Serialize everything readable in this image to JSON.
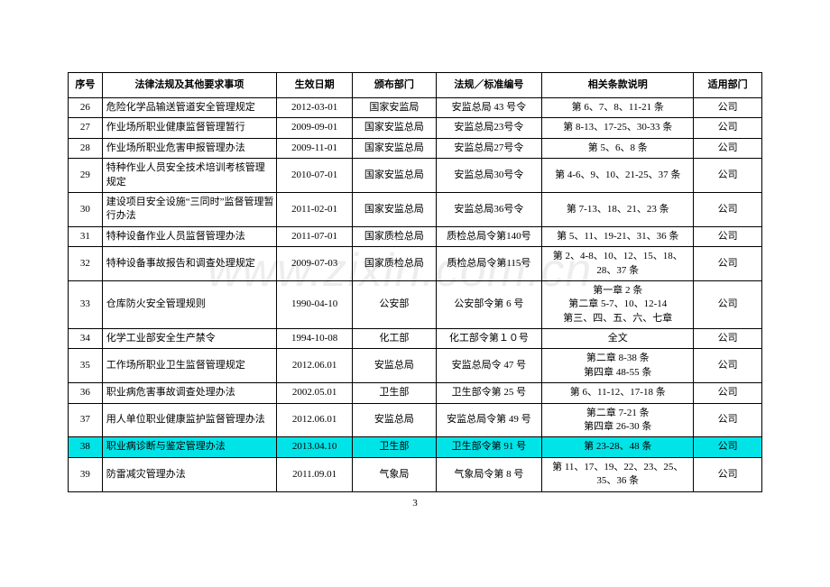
{
  "pageNumber": "3",
  "watermark": "www.zixin.com.cn",
  "columns": [
    "序号",
    "法律法规及其他要求事项",
    "生效日期",
    "颁布部门",
    "法规／标准编号",
    "相关条款说明",
    "适用部门"
  ],
  "rows": [
    {
      "seq": "26",
      "name": "危险化学品输送管道安全管理规定",
      "date": "2012-03-01",
      "dept": "国家安监局",
      "code": "安监总局 43 号令",
      "clause": "第 6、7、8、11-21 条",
      "apply": "公司",
      "hl": false
    },
    {
      "seq": "27",
      "name": "作业场所职业健康监督管理暂行",
      "date": "2009-09-01",
      "dept": "国家安监总局",
      "code": "安监总局23号令",
      "clause": "第 8-13、17-25、30-33 条",
      "apply": "公司",
      "hl": false
    },
    {
      "seq": "28",
      "name": "作业场所职业危害申报管理办法",
      "date": "2009-11-01",
      "dept": "国家安监总局",
      "code": "安监总局27号令",
      "clause": "第 5、6、8 条",
      "apply": "公司",
      "hl": false
    },
    {
      "seq": "29",
      "name": "特种作业人员安全技术培训考核管理规定",
      "date": "2010-07-01",
      "dept": "国家安监总局",
      "code": "安监总局30号令",
      "clause": "第 4-6、9、10、21-25、37 条",
      "apply": "公司",
      "hl": false
    },
    {
      "seq": "30",
      "name": "建设项目安全设施“三同时”监督管理暂行办法",
      "date": "2011-02-01",
      "dept": "国家安监总局",
      "code": "安监总局36号令",
      "clause": "第 7-13、18、21、23 条",
      "apply": "公司",
      "hl": false
    },
    {
      "seq": "31",
      "name": "特种设备作业人员监督管理办法",
      "date": "2011-07-01",
      "dept": "国家质检总局",
      "code": "质检总局令第140号",
      "clause": "第 5、11、19-21、31、36 条",
      "apply": "公司",
      "hl": false
    },
    {
      "seq": "32",
      "name": "特种设备事故报告和调查处理规定",
      "date": "2009-07-03",
      "dept": "国家质检总局",
      "code": "质检总局令第115号",
      "clause": "第 2、4-8、10、12、15、18、28、37 条",
      "apply": "公司",
      "hl": false
    },
    {
      "seq": "33",
      "name": "仓库防火安全管理规则",
      "date": "1990-04-10",
      "dept": "公安部",
      "code": "公安部令第 6 号",
      "clause": "第一章 2 条\n第二章 5-7、10、12-14\n第三、四、五、六、七章",
      "apply": "公司",
      "hl": false
    },
    {
      "seq": "34",
      "name": "化学工业部安全生产禁令",
      "date": "1994-10-08",
      "dept": "化工部",
      "code": "化工部令第１０号",
      "clause": "全文",
      "apply": "公司",
      "hl": false
    },
    {
      "seq": "35",
      "name": "工作场所职业卫生监督管理规定",
      "date": "2012.06.01",
      "dept": "安监总局",
      "code": "安监总局令 47 号",
      "clause": "第二章 8-38 条\n第四章 48-55 条",
      "apply": "公司",
      "hl": false
    },
    {
      "seq": "36",
      "name": "职业病危害事故调查处理办法",
      "date": "2002.05.01",
      "dept": "卫生部",
      "code": "卫生部令第 25 号",
      "clause": "第 6、11-12、17-18 条",
      "apply": "公司",
      "hl": false
    },
    {
      "seq": "37",
      "name": "用人单位职业健康监护监督管理办法",
      "date": "2012.06.01",
      "dept": "安监总局",
      "code": "安监总局令第 49 号",
      "clause": "第二章 7-21 条\n第四章 26-30 条",
      "apply": "公司",
      "hl": false
    },
    {
      "seq": "38",
      "name": "职业病诊断与鉴定管理办法",
      "date": "2013.04.10",
      "dept": "卫生部",
      "code": "卫生部令第 91 号",
      "clause": "第 23-28、48 条",
      "apply": "公司",
      "hl": true
    },
    {
      "seq": "39",
      "name": "防雷减灾管理办法",
      "date": "2011.09.01",
      "dept": "气象局",
      "code": "气象局令第 8 号",
      "clause": "第 11、17、19、22、23、25、35、36 条",
      "apply": "公司",
      "hl": false
    }
  ]
}
